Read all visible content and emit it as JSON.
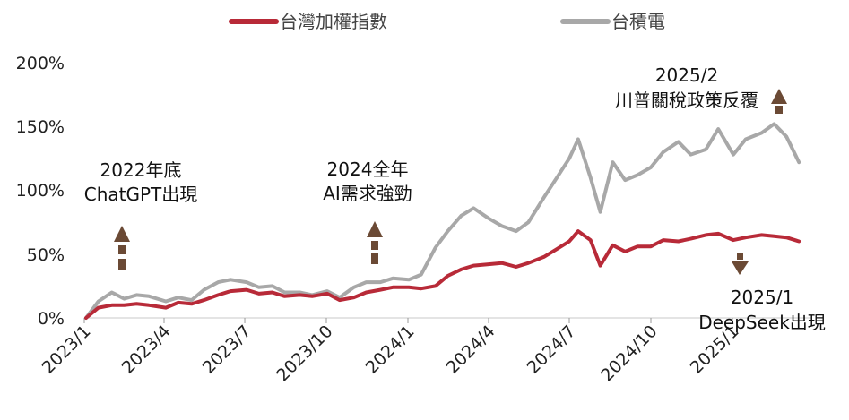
{
  "legend": [
    {
      "name": "台灣加權指數",
      "color": "#b82a38"
    },
    {
      "name": "台積電",
      "color": "#a8a8a8"
    }
  ],
  "chart_data": {
    "type": "line",
    "ylim": [
      0,
      200
    ],
    "xlim": [
      "2023-01",
      "2025-04"
    ],
    "yticks": [
      0,
      50,
      100,
      150,
      200
    ],
    "ytick_labels": [
      "0%",
      "50%",
      "100%",
      "150%",
      "200%"
    ],
    "xticks": [
      "2023-01",
      "2023-04",
      "2023-07",
      "2023-10",
      "2024-01",
      "2024-04",
      "2024-07",
      "2024-10",
      "2025-01"
    ],
    "xtick_labels": [
      "2023/1",
      "2023/4",
      "2023/7",
      "2023/10",
      "2024/1",
      "2024/4",
      "2024/7",
      "2024/10",
      "2025/1"
    ],
    "grid": false,
    "legend_position": "top",
    "series": [
      {
        "name": "台灣加權指數",
        "color": "#b82a38",
        "x": [
          "2023-01-03",
          "2023-01-17",
          "2023-02-01",
          "2023-02-15",
          "2023-03-01",
          "2023-03-15",
          "2023-04-03",
          "2023-04-17",
          "2023-05-02",
          "2023-05-16",
          "2023-06-01",
          "2023-06-15",
          "2023-07-03",
          "2023-07-17",
          "2023-08-01",
          "2023-08-15",
          "2023-09-01",
          "2023-09-15",
          "2023-10-02",
          "2023-10-16",
          "2023-11-01",
          "2023-11-15",
          "2023-12-01",
          "2023-12-15",
          "2024-01-02",
          "2024-01-16",
          "2024-02-01",
          "2024-02-15",
          "2024-03-01",
          "2024-03-15",
          "2024-04-01",
          "2024-04-16",
          "2024-05-02",
          "2024-05-16",
          "2024-06-03",
          "2024-06-17",
          "2024-07-01",
          "2024-07-11",
          "2024-07-25",
          "2024-08-05",
          "2024-08-19",
          "2024-09-02",
          "2024-09-16",
          "2024-10-01",
          "2024-10-15",
          "2024-11-01",
          "2024-11-15",
          "2024-12-02",
          "2024-12-16",
          "2025-01-02",
          "2025-01-16",
          "2025-02-03",
          "2025-02-17",
          "2025-03-03",
          "2025-03-17"
        ],
        "y": [
          0,
          8,
          10,
          10,
          11,
          10,
          8,
          12,
          11,
          14,
          18,
          21,
          22,
          19,
          20,
          17,
          18,
          17,
          19,
          14,
          16,
          20,
          22,
          24,
          24,
          23,
          25,
          33,
          38,
          41,
          42,
          43,
          40,
          43,
          48,
          54,
          60,
          68,
          61,
          41,
          57,
          52,
          56,
          56,
          61,
          60,
          62,
          65,
          66,
          61,
          63,
          65,
          64,
          63,
          60
        ]
      },
      {
        "name": "台積電",
        "color": "#a8a8a8",
        "x": [
          "2023-01-03",
          "2023-01-17",
          "2023-02-01",
          "2023-02-15",
          "2023-03-01",
          "2023-03-15",
          "2023-04-03",
          "2023-04-17",
          "2023-05-02",
          "2023-05-16",
          "2023-06-01",
          "2023-06-15",
          "2023-07-03",
          "2023-07-17",
          "2023-08-01",
          "2023-08-15",
          "2023-09-01",
          "2023-09-15",
          "2023-10-02",
          "2023-10-16",
          "2023-11-01",
          "2023-11-15",
          "2023-12-01",
          "2023-12-15",
          "2024-01-02",
          "2024-01-16",
          "2024-02-01",
          "2024-02-15",
          "2024-03-01",
          "2024-03-15",
          "2024-04-01",
          "2024-04-16",
          "2024-05-02",
          "2024-05-16",
          "2024-06-03",
          "2024-06-17",
          "2024-07-01",
          "2024-07-11",
          "2024-07-25",
          "2024-08-05",
          "2024-08-19",
          "2024-09-02",
          "2024-09-16",
          "2024-10-01",
          "2024-10-15",
          "2024-11-01",
          "2024-11-15",
          "2024-12-02",
          "2024-12-16",
          "2025-01-02",
          "2025-01-16",
          "2025-02-03",
          "2025-02-17",
          "2025-03-03",
          "2025-03-17"
        ],
        "y": [
          0,
          13,
          20,
          15,
          18,
          17,
          13,
          16,
          14,
          22,
          28,
          30,
          28,
          24,
          25,
          20,
          20,
          18,
          21,
          16,
          24,
          28,
          28,
          31,
          30,
          34,
          55,
          68,
          80,
          86,
          78,
          72,
          68,
          75,
          95,
          110,
          125,
          140,
          110,
          83,
          122,
          108,
          112,
          118,
          130,
          138,
          128,
          132,
          148,
          128,
          140,
          145,
          152,
          142,
          122
        ]
      }
    ],
    "annotations": [
      {
        "lines": [
          "2022年底",
          "ChatGPT出現"
        ],
        "arrow": "up",
        "color": "#6b4a35"
      },
      {
        "lines": [
          "2024全年",
          "AI需求強勁"
        ],
        "arrow": "up",
        "color": "#6b4a35"
      },
      {
        "lines": [
          "2025/2",
          "川普關稅政策反覆"
        ],
        "arrow": "up",
        "color": "#6b4a35"
      },
      {
        "lines": [
          "2025/1",
          "DeepSeek出現"
        ],
        "arrow": "down",
        "color": "#6b4a35"
      }
    ]
  }
}
